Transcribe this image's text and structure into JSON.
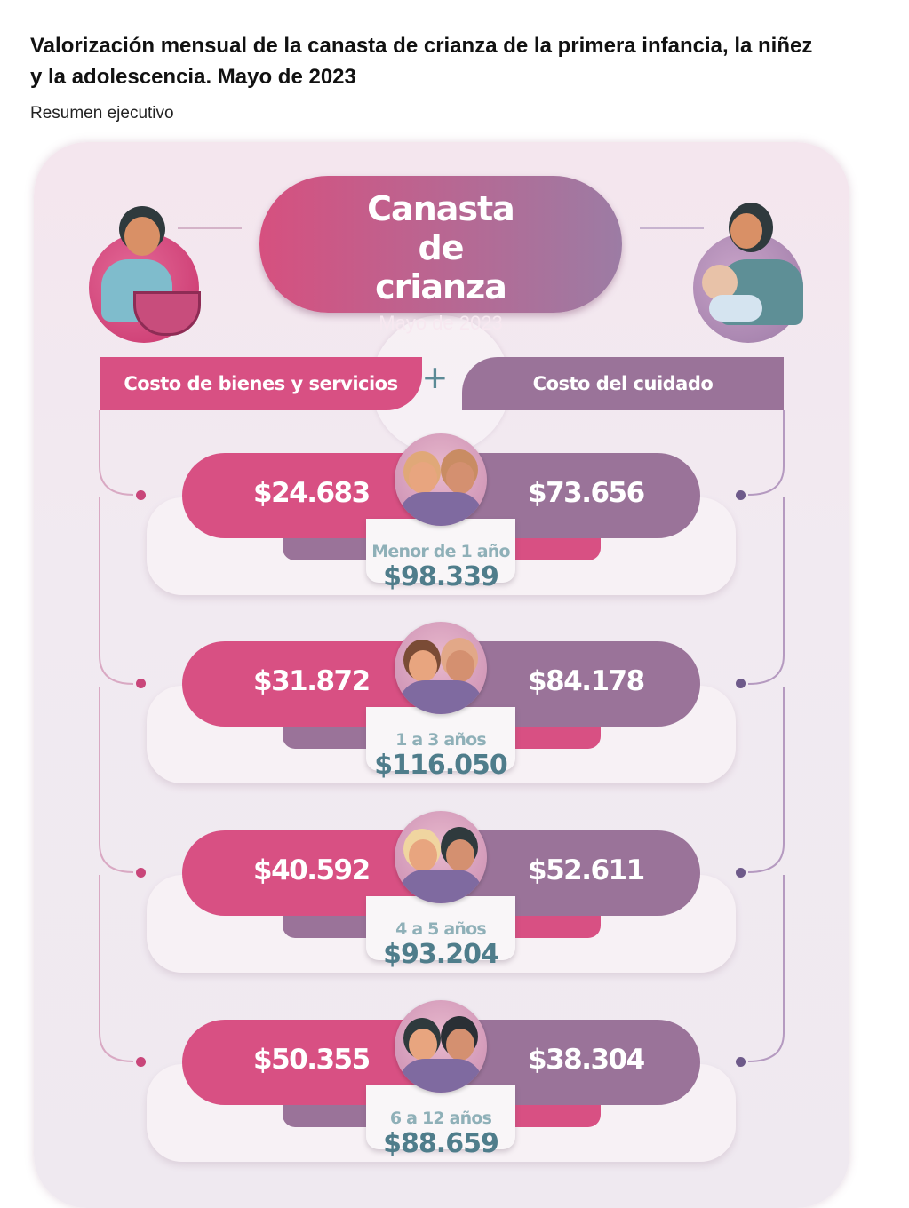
{
  "header": {
    "title": "Valorización mensual de la canasta de crianza de la primera infancia, la niñez y la adolescencia. Mayo de 2023",
    "subtitle": "Resumen ejecutivo"
  },
  "infographic": {
    "title": "Canasta de crianza",
    "date": "Mayo de 2023",
    "left_label": "Costo de bienes y servicios",
    "right_label": "Costo del cuidado",
    "operator": "+",
    "colors": {
      "goods": "#d85083",
      "care": "#9a7399",
      "total_text": "#4f7d8b"
    },
    "rows": [
      {
        "age": "Menor de 1 año",
        "goods": "$24.683",
        "care": "$73.656",
        "total": "$98.339"
      },
      {
        "age": "1 a 3 años",
        "goods": "$31.872",
        "care": "$84.178",
        "total": "$116.050"
      },
      {
        "age": "4 a 5 años",
        "goods": "$40.592",
        "care": "$52.611",
        "total": "$93.204"
      },
      {
        "age": "6 a 12 años",
        "goods": "$50.355",
        "care": "$38.304",
        "total": "$88.659"
      }
    ]
  }
}
